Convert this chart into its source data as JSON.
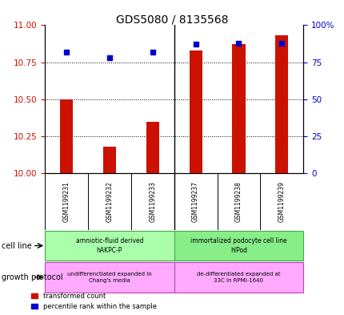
{
  "title": "GDS5080 / 8135568",
  "samples": [
    "GSM1199231",
    "GSM1199232",
    "GSM1199233",
    "GSM1199237",
    "GSM1199238",
    "GSM1199239"
  ],
  "red_values": [
    10.5,
    10.18,
    10.35,
    10.83,
    10.87,
    10.93
  ],
  "blue_values": [
    82,
    78,
    82,
    87,
    88,
    88
  ],
  "left_ylim": [
    10,
    11
  ],
  "left_yticks": [
    10,
    10.25,
    10.5,
    10.75,
    11
  ],
  "right_ylim": [
    0,
    100
  ],
  "right_yticks": [
    0,
    25,
    50,
    75,
    100
  ],
  "right_yticklabels": [
    "0",
    "25",
    "50",
    "75",
    "100%"
  ],
  "red_color": "#cc1100",
  "blue_color": "#0000cc",
  "cell_line_labels": [
    "amniotic-fluid derived\nhAKPC-P",
    "immortalized podocyte cell line\nhIPod"
  ],
  "cell_line_colors": [
    "#aaffaa",
    "#88ee88"
  ],
  "growth_protocol_labels": [
    "undifferenctiated expanded in\nChang's media",
    "de-differentiated expanded at\n33C in RPMI-1640"
  ],
  "growth_protocol_colors": [
    "#ffaaff",
    "#ffaaff"
  ],
  "legend_red": "transformed count",
  "legend_blue": "percentile rank within the sample",
  "bg_color": "#ffffff",
  "tick_label_color_left": "#cc1100",
  "tick_label_color_right": "#0000cc"
}
